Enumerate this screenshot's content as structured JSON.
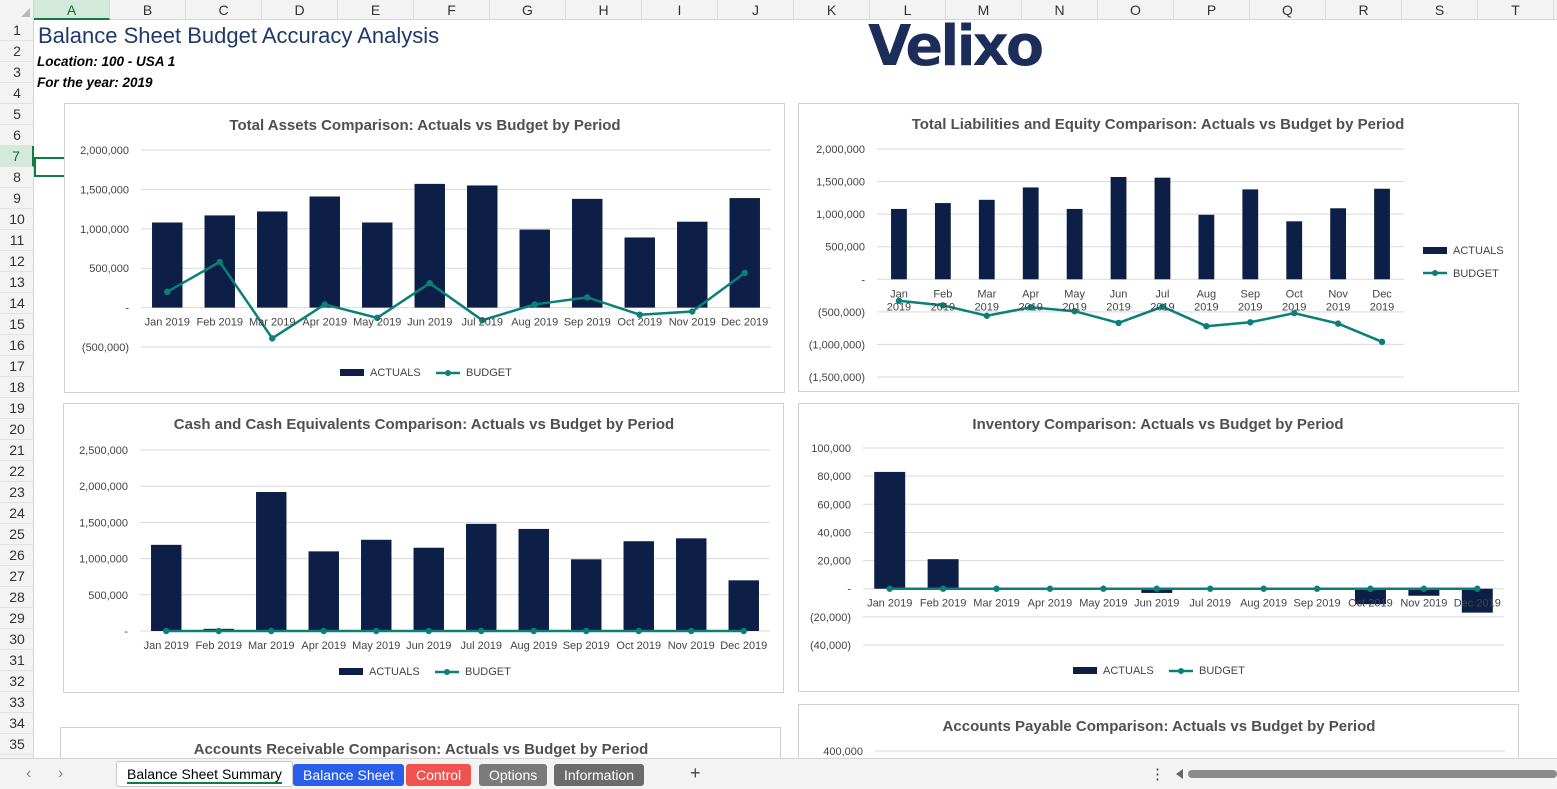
{
  "columns": [
    "A",
    "B",
    "C",
    "D",
    "E",
    "F",
    "G",
    "H",
    "I",
    "J",
    "K",
    "L",
    "M",
    "N",
    "O",
    "P",
    "Q",
    "R",
    "S",
    "T"
  ],
  "rows": [
    "1",
    "2",
    "3",
    "4",
    "5",
    "6",
    "7",
    "8",
    "9",
    "10",
    "11",
    "12",
    "13",
    "14",
    "15",
    "16",
    "17",
    "18",
    "19",
    "20",
    "21",
    "22",
    "23",
    "24",
    "25",
    "26",
    "27",
    "28",
    "29",
    "30",
    "31",
    "32",
    "33",
    "34",
    "35"
  ],
  "sheet": {
    "title": "Balance Sheet Budget Accuracy Analysis",
    "location": "Location: 100 - USA 1",
    "year": "For the year: 2019",
    "logo_text": "Velixo"
  },
  "colors": {
    "actuals": "#0d1f47",
    "budget": "#0a8079",
    "selected": "#107c41"
  },
  "chart_data": [
    {
      "type": "bar",
      "title": "Total Assets Comparison: Actuals vs Budget by Period",
      "categories": [
        "Jan 2019",
        "Feb 2019",
        "Mar 2019",
        "Apr 2019",
        "May 2019",
        "Jun 2019",
        "Jul 2019",
        "Aug 2019",
        "Sep 2019",
        "Oct 2019",
        "Nov 2019",
        "Dec 2019"
      ],
      "ylim": [
        -500000,
        2000000
      ],
      "yticks": [
        "2,000,000",
        "1,500,000",
        "1,000,000",
        "500,000",
        "-",
        "(500,000)"
      ],
      "series": [
        {
          "name": "ACTUALS",
          "type": "bar",
          "values": [
            1080000,
            1170000,
            1220000,
            1410000,
            1080000,
            1570000,
            1550000,
            990000,
            1380000,
            890000,
            1090000,
            1390000
          ]
        },
        {
          "name": "BUDGET",
          "type": "line",
          "values": [
            200000,
            580000,
            -390000,
            40000,
            -130000,
            310000,
            -160000,
            40000,
            130000,
            -90000,
            -50000,
            440000
          ]
        }
      ],
      "legend": "bottom"
    },
    {
      "type": "bar",
      "title": "Total Liabilities and Equity Comparison: Actuals vs Budget by Period",
      "categories": [
        "Jan 2019",
        "Feb 2019",
        "Mar 2019",
        "Apr 2019",
        "May 2019",
        "Jun 2019",
        "Jul 2019",
        "Aug 2019",
        "Sep 2019",
        "Oct 2019",
        "Nov 2019",
        "Dec 2019"
      ],
      "ylim": [
        -1500000,
        2000000
      ],
      "yticks": [
        "2,000,000",
        "1,500,000",
        "1,000,000",
        "500,000",
        "-",
        "(500,000)",
        "(1,000,000)",
        "(1,500,000)"
      ],
      "series": [
        {
          "name": "ACTUALS",
          "type": "bar",
          "values": [
            1080000,
            1170000,
            1220000,
            1410000,
            1080000,
            1570000,
            1560000,
            990000,
            1380000,
            890000,
            1090000,
            1390000
          ]
        },
        {
          "name": "BUDGET",
          "type": "line",
          "values": [
            -330000,
            -400000,
            -560000,
            -430000,
            -490000,
            -670000,
            -420000,
            -720000,
            -660000,
            -520000,
            -680000,
            -960000
          ]
        }
      ],
      "legend": "right"
    },
    {
      "type": "bar",
      "title": "Cash and Cash Equivalents Comparison: Actuals vs Budget by Period",
      "categories": [
        "Jan 2019",
        "Feb 2019",
        "Mar 2019",
        "Apr 2019",
        "May 2019",
        "Jun 2019",
        "Jul 2019",
        "Aug 2019",
        "Sep 2019",
        "Oct 2019",
        "Nov 2019",
        "Dec 2019"
      ],
      "ylim": [
        0,
        2500000
      ],
      "yticks": [
        "2,500,000",
        "2,000,000",
        "1,500,000",
        "1,000,000",
        "500,000",
        "-"
      ],
      "series": [
        {
          "name": "ACTUALS",
          "type": "bar",
          "values": [
            1190000,
            30000,
            1920000,
            1100000,
            1260000,
            1150000,
            1480000,
            1410000,
            990000,
            1240000,
            1280000,
            700000
          ]
        },
        {
          "name": "BUDGET",
          "type": "line",
          "values": [
            0,
            0,
            0,
            0,
            0,
            0,
            0,
            0,
            0,
            0,
            0,
            0
          ]
        }
      ],
      "legend": "bottom"
    },
    {
      "type": "bar",
      "title": "Inventory Comparison: Actuals vs Budget by Period",
      "categories": [
        "Jan 2019",
        "Feb 2019",
        "Mar 2019",
        "Apr 2019",
        "May 2019",
        "Jun 2019",
        "Jul 2019",
        "Aug 2019",
        "Sep 2019",
        "Oct 2019",
        "Nov 2019",
        "Dec 2019"
      ],
      "ylim": [
        -40000,
        100000
      ],
      "yticks": [
        "100,000",
        "80,000",
        "60,000",
        "40,000",
        "20,000",
        "-",
        "(20,000)",
        "(40,000)"
      ],
      "series": [
        {
          "name": "ACTUALS",
          "type": "bar",
          "values": [
            83000,
            21000,
            0,
            0,
            0,
            -3000,
            0,
            0,
            0,
            -11000,
            -5000,
            -17000
          ]
        },
        {
          "name": "BUDGET",
          "type": "line",
          "values": [
            0,
            0,
            0,
            0,
            0,
            0,
            0,
            0,
            0,
            0,
            0,
            0
          ]
        }
      ],
      "legend": "bottom"
    },
    {
      "type": "bar",
      "title": "Accounts Receivable Comparison: Actuals vs Budget by Period",
      "categories": [],
      "series": []
    },
    {
      "type": "bar",
      "title": "Accounts Payable Comparison: Actuals vs Budget by Period",
      "yticks": [
        "400,000"
      ],
      "categories": [],
      "series": []
    }
  ],
  "legend_labels": {
    "actuals": "ACTUALS",
    "budget": "BUDGET"
  },
  "tabs": [
    {
      "label": "Balance Sheet Summary",
      "active": true,
      "color": "#ffffff"
    },
    {
      "label": "Balance Sheet",
      "active": false,
      "color": "#2a5ee8"
    },
    {
      "label": "Control",
      "active": false,
      "color": "#ef5350"
    },
    {
      "label": "Options",
      "active": false,
      "color": "#7a7a7a"
    },
    {
      "label": "Information",
      "active": false,
      "color": "#6b6b6b"
    }
  ],
  "tabbar": {
    "prev": "‹",
    "next": "›",
    "add": "+",
    "more": "⋮"
  }
}
